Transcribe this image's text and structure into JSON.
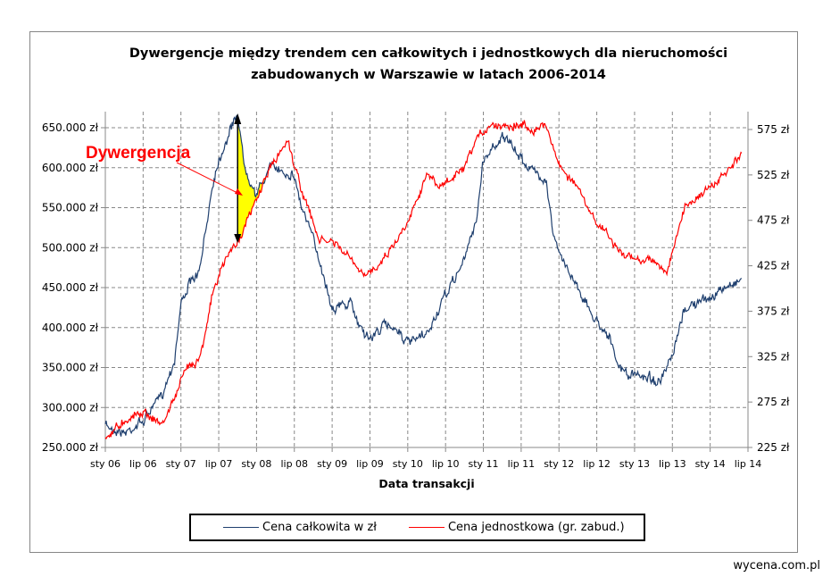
{
  "chart_data": {
    "type": "line",
    "title": "Dywergencje między trendem cen całkowitych i jednostkowych dla nieruchomości zabudowanych  w Warszawie w latach 2006-2014",
    "title_lines": [
      "Dywergencje między trendem cen całkowitych i jednostkowych dla nieruchomości",
      "zabudowanych  w Warszawie w latach 2006-2014"
    ],
    "xlabel": "Data transakcji",
    "x_ticks": [
      "sty 06",
      "lip 06",
      "sty 07",
      "lip 07",
      "sty 08",
      "lip 08",
      "sty 09",
      "lip 09",
      "sty 10",
      "lip 10",
      "sty 11",
      "lip 11",
      "sty 12",
      "lip 12",
      "sty 13",
      "lip 13",
      "sty 14",
      "lip 14"
    ],
    "x_range": [
      "2006-01",
      "2014-07"
    ],
    "y_left_ticks": [
      "250.000 zł",
      "300.000 zł",
      "350.000 zł",
      "400.000 zł",
      "450.000 zł",
      "500.000 zł",
      "550.000 zł",
      "600.000 zł",
      "650.000 zł"
    ],
    "y_left_range": [
      250000,
      650000
    ],
    "y_right_ticks": [
      "225 zł",
      "275 zł",
      "325 zł",
      "375 zł",
      "425 zł",
      "475 zł",
      "525 zł",
      "575 zł"
    ],
    "y_right_range": [
      225,
      575
    ],
    "grid": true,
    "legend_position": "bottom",
    "series": [
      {
        "name": "Cena całkowita w zł",
        "axis": "left",
        "color": "#1f3f6e",
        "points": [
          [
            "2006-01",
            278000
          ],
          [
            "2006-04",
            268000
          ],
          [
            "2006-07",
            283000
          ],
          [
            "2006-10",
            317000
          ],
          [
            "2006-12",
            360000
          ],
          [
            "2007-01",
            430000
          ],
          [
            "2007-02",
            450000
          ],
          [
            "2007-04",
            470000
          ],
          [
            "2007-06",
            580000
          ],
          [
            "2007-07",
            610000
          ],
          [
            "2007-08",
            630000
          ],
          [
            "2007-10",
            670000
          ],
          [
            "2007-11",
            605000
          ],
          [
            "2008-01",
            565000
          ],
          [
            "2008-03",
            600000
          ],
          [
            "2008-04",
            600000
          ],
          [
            "2008-07",
            590000
          ],
          [
            "2008-08",
            555000
          ],
          [
            "2008-10",
            510000
          ],
          [
            "2008-11",
            485000
          ],
          [
            "2009-01",
            425000
          ],
          [
            "2009-04",
            430000
          ],
          [
            "2009-05",
            408000
          ],
          [
            "2009-07",
            385000
          ],
          [
            "2009-09",
            402000
          ],
          [
            "2009-11",
            402000
          ],
          [
            "2010-01",
            380000
          ],
          [
            "2010-04",
            390000
          ],
          [
            "2010-07",
            440000
          ],
          [
            "2010-10",
            485000
          ],
          [
            "2010-12",
            540000
          ],
          [
            "2011-01",
            610000
          ],
          [
            "2011-04",
            640000
          ],
          [
            "2011-07",
            612000
          ],
          [
            "2011-09",
            595000
          ],
          [
            "2011-11",
            585000
          ],
          [
            "2011-12",
            520000
          ],
          [
            "2012-01",
            492000
          ],
          [
            "2012-04",
            452000
          ],
          [
            "2012-06",
            418000
          ],
          [
            "2012-09",
            390000
          ],
          [
            "2012-10",
            357000
          ],
          [
            "2012-12",
            340000
          ],
          [
            "2013-03",
            340000
          ],
          [
            "2013-05",
            330000
          ],
          [
            "2013-07",
            362000
          ],
          [
            "2013-09",
            425000
          ],
          [
            "2013-11",
            430000
          ],
          [
            "2014-02",
            442000
          ],
          [
            "2014-04",
            453000
          ],
          [
            "2014-06",
            462000
          ]
        ]
      },
      {
        "name": "Cena jednostkowa (gr. zabud.)",
        "axis": "right",
        "color": "#ff0000",
        "points": [
          [
            "2006-01",
            235
          ],
          [
            "2006-04",
            255
          ],
          [
            "2006-07",
            265
          ],
          [
            "2006-10",
            250
          ],
          [
            "2006-12",
            280
          ],
          [
            "2007-02",
            314
          ],
          [
            "2007-04",
            324
          ],
          [
            "2007-06",
            393
          ],
          [
            "2007-08",
            432
          ],
          [
            "2007-10",
            452
          ],
          [
            "2007-12",
            481
          ],
          [
            "2008-03",
            531
          ],
          [
            "2008-04",
            541
          ],
          [
            "2008-06",
            565
          ],
          [
            "2008-07",
            535
          ],
          [
            "2008-09",
            491
          ],
          [
            "2008-11",
            452
          ],
          [
            "2009-01",
            452
          ],
          [
            "2009-04",
            432
          ],
          [
            "2009-06",
            412
          ],
          [
            "2009-09",
            432
          ],
          [
            "2009-12",
            461
          ],
          [
            "2010-02",
            491
          ],
          [
            "2010-04",
            526
          ],
          [
            "2010-06",
            511
          ],
          [
            "2010-08",
            521
          ],
          [
            "2010-10",
            531
          ],
          [
            "2010-12",
            565
          ],
          [
            "2011-02",
            580
          ],
          [
            "2011-05",
            580
          ],
          [
            "2011-07",
            580
          ],
          [
            "2011-09",
            575
          ],
          [
            "2011-11",
            580
          ],
          [
            "2012-01",
            536
          ],
          [
            "2012-04",
            511
          ],
          [
            "2012-06",
            481
          ],
          [
            "2012-09",
            457
          ],
          [
            "2012-11",
            437
          ],
          [
            "2013-01",
            432
          ],
          [
            "2013-04",
            432
          ],
          [
            "2013-06",
            417
          ],
          [
            "2013-07",
            437
          ],
          [
            "2013-09",
            491
          ],
          [
            "2013-11",
            501
          ],
          [
            "2014-02",
            516
          ],
          [
            "2014-04",
            531
          ],
          [
            "2014-06",
            546
          ]
        ]
      }
    ],
    "annotations": [
      {
        "text": "Dywergencja",
        "color": "#ff0000",
        "highlight_color": "#ffff00",
        "from": "2007-10",
        "to": "2008-02"
      }
    ]
  },
  "footer": "wycena.com.pl"
}
